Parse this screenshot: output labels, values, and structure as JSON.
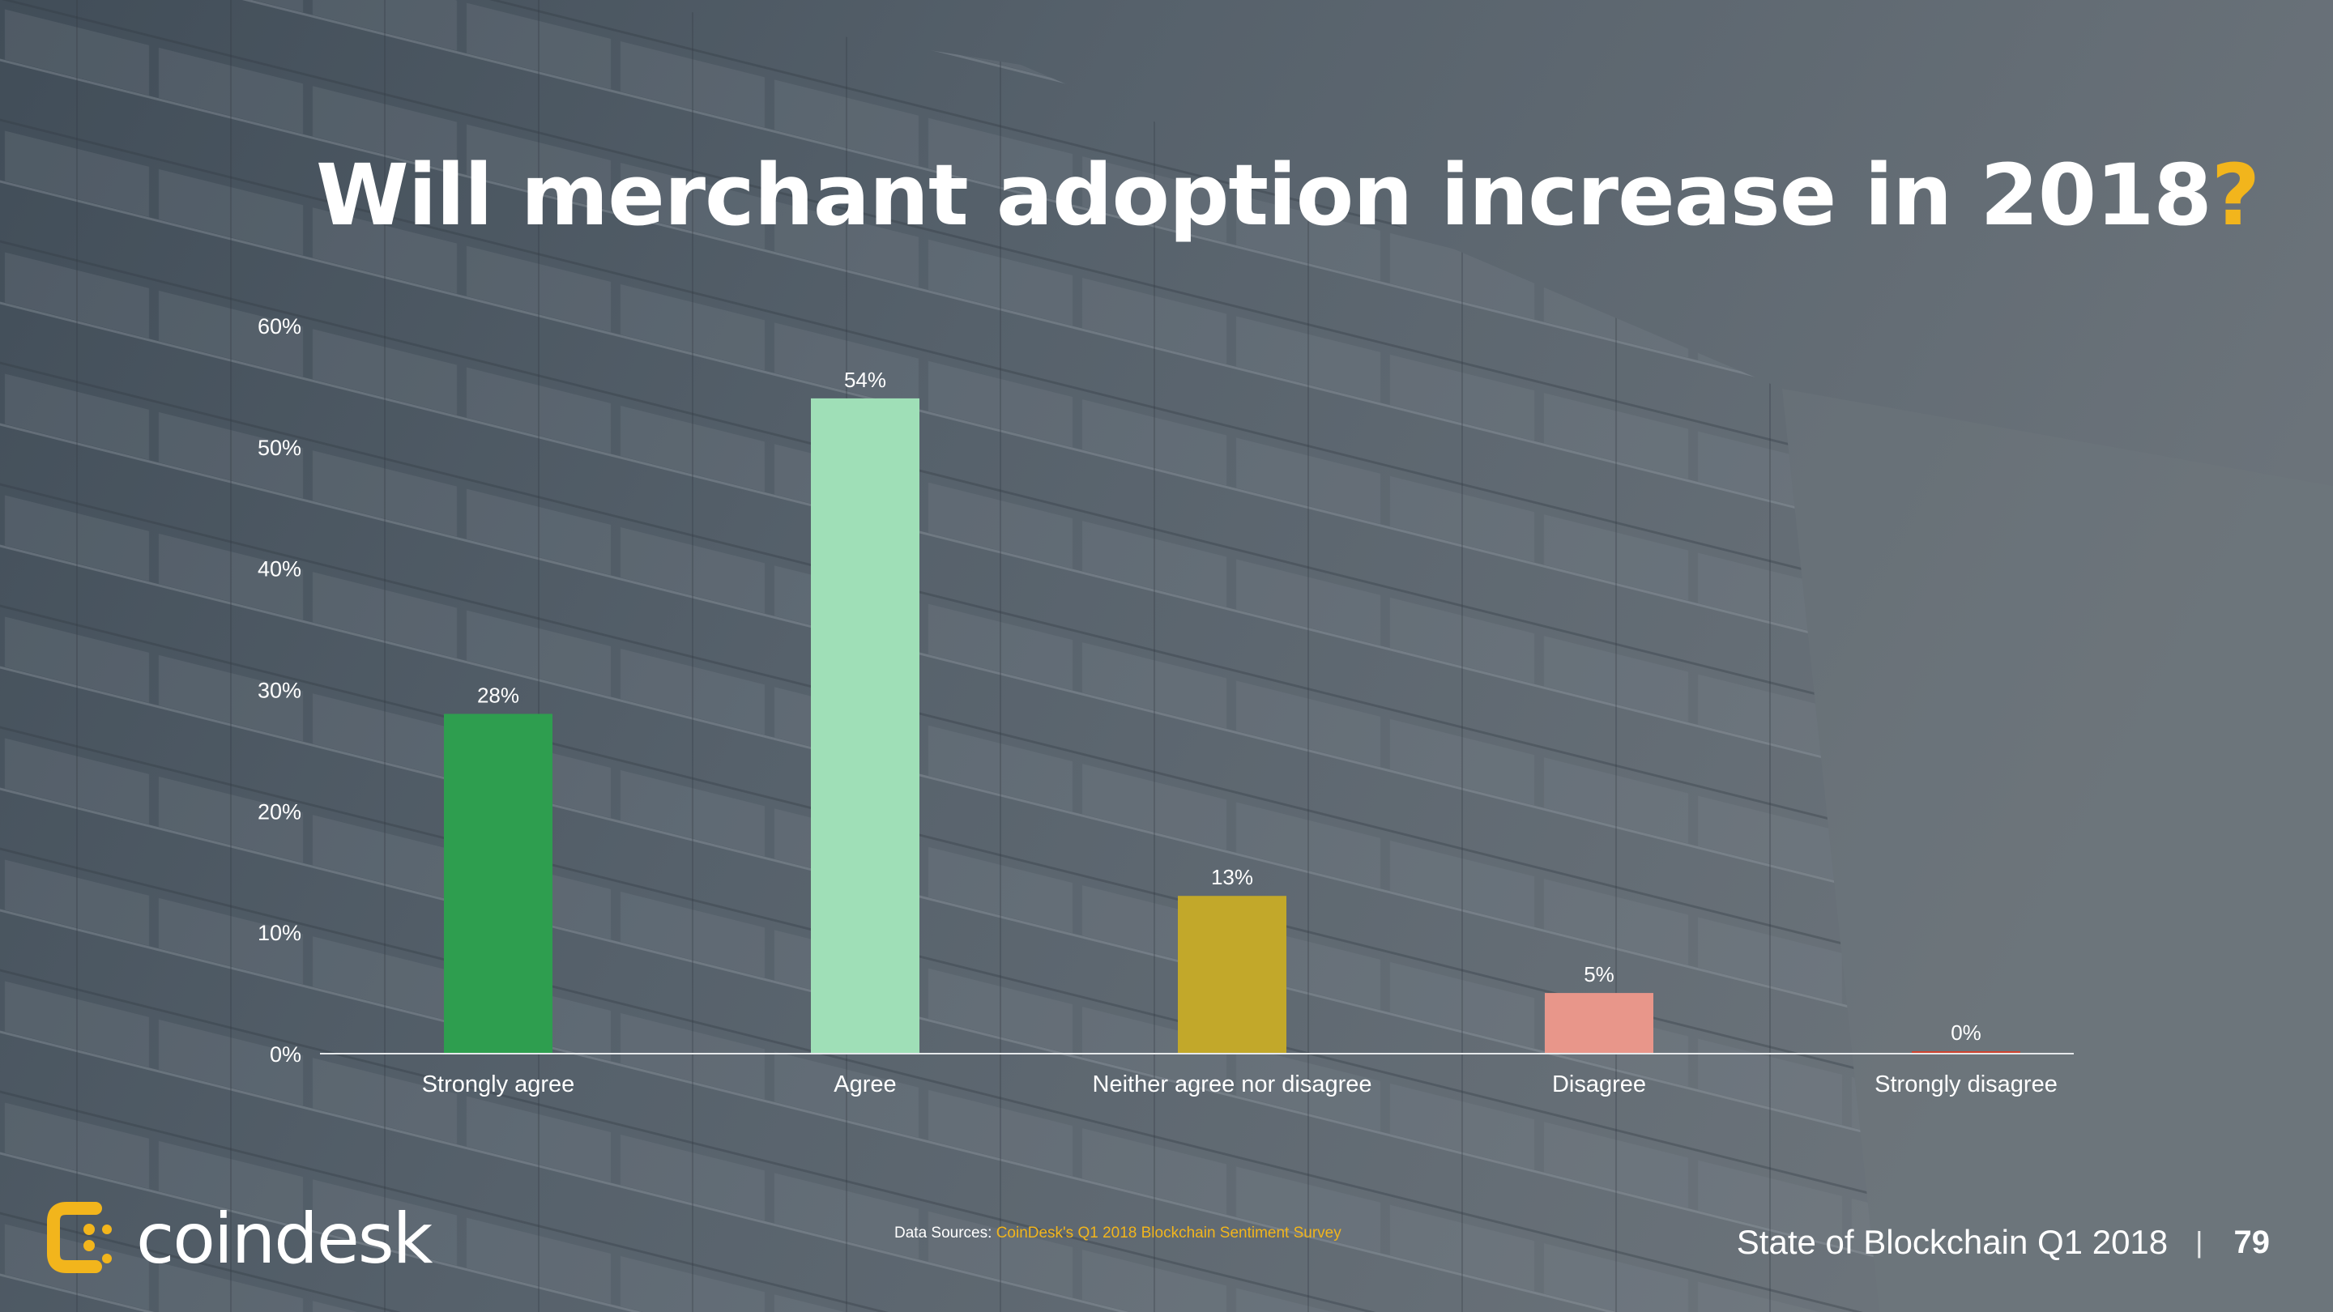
{
  "slide": {
    "title": "Will merchant adoption increase in 2018",
    "title_mark": "?",
    "accent_color": "#f2b51c"
  },
  "chart_data": {
    "type": "bar",
    "categories": [
      "Strongly agree",
      "Agree",
      "Neither agree nor disagree",
      "Disagree",
      "Strongly disagree"
    ],
    "values": [
      28,
      54,
      13,
      5,
      0
    ],
    "value_labels": [
      "28%",
      "54%",
      "13%",
      "5%",
      "0%"
    ],
    "colors": [
      "#2e9e4f",
      "#9fdfb7",
      "#c2a82a",
      "#e8968a",
      "#d0432f"
    ],
    "ylim": [
      0,
      60
    ],
    "yticks": [
      0,
      10,
      20,
      30,
      40,
      50,
      60
    ],
    "ytick_labels": [
      "0%",
      "10%",
      "20%",
      "30%",
      "40%",
      "50%",
      "60%"
    ],
    "grid": false,
    "legend": "none"
  },
  "brand": {
    "name": "coindesk",
    "logo_icon": "coindesk-logo-icon"
  },
  "footer": {
    "sources_label": "Data Sources:",
    "sources_link": "CoinDesk's Q1 2018 Blockchain Sentiment Survey",
    "report_title": "State of Blockchain Q1 2018",
    "separator": "|",
    "page_number": "79"
  }
}
